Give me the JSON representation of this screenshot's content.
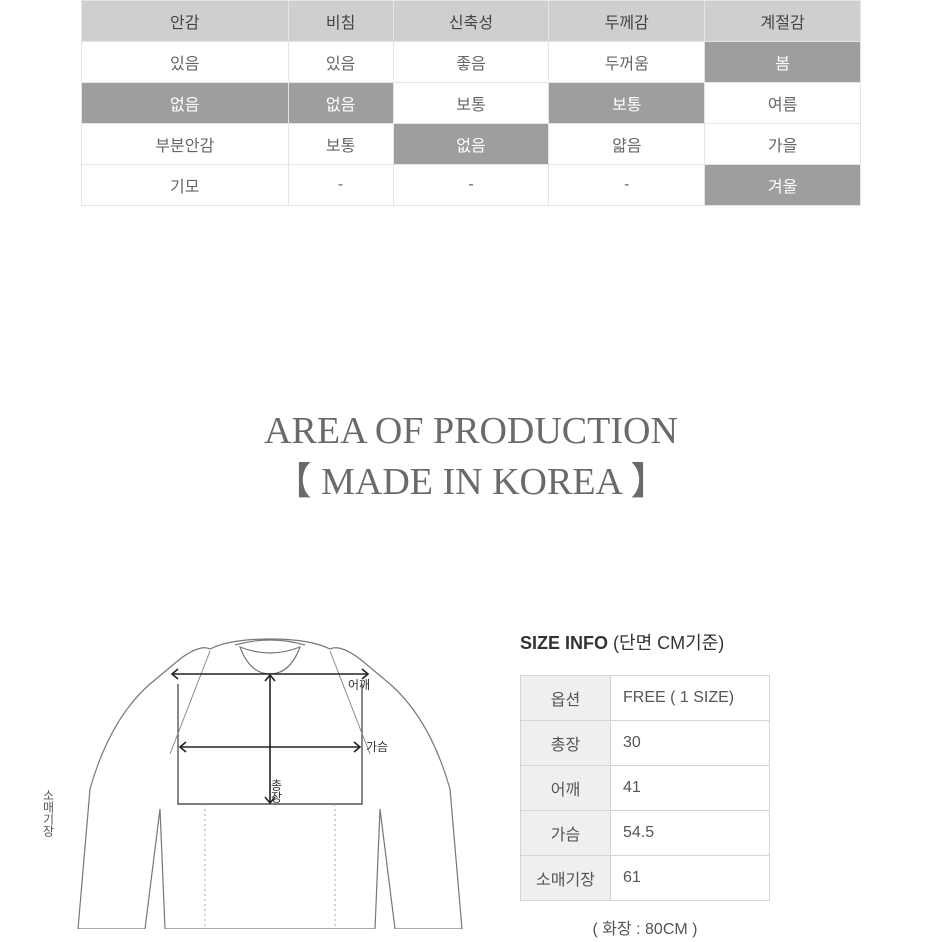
{
  "attr_table": {
    "headers": [
      "안감",
      "비침",
      "신축성",
      "두께감",
      "계절감"
    ],
    "rows": [
      [
        {
          "t": "있음",
          "hl": false
        },
        {
          "t": "있음",
          "hl": false
        },
        {
          "t": "좋음",
          "hl": false
        },
        {
          "t": "두꺼움",
          "hl": false
        },
        {
          "t": "봄",
          "hl": true
        }
      ],
      [
        {
          "t": "없음",
          "hl": true
        },
        {
          "t": "없음",
          "hl": true
        },
        {
          "t": "보통",
          "hl": false
        },
        {
          "t": "보통",
          "hl": true
        },
        {
          "t": "여름",
          "hl": false
        }
      ],
      [
        {
          "t": "부분안감",
          "hl": false
        },
        {
          "t": "보통",
          "hl": false
        },
        {
          "t": "없음",
          "hl": true
        },
        {
          "t": "얇음",
          "hl": false
        },
        {
          "t": "가을",
          "hl": false
        }
      ],
      [
        {
          "t": "기모",
          "hl": false
        },
        {
          "t": "-",
          "hl": false
        },
        {
          "t": "-",
          "hl": false
        },
        {
          "t": "-",
          "hl": false
        },
        {
          "t": "겨울",
          "hl": true
        }
      ]
    ]
  },
  "production": {
    "line1": "AREA OF PRODUCTION",
    "line2": "【 MADE IN KOREA 】"
  },
  "diagram": {
    "labels": {
      "shoulder": "어깨",
      "chest": "가슴",
      "length": "총장",
      "sleeve": "소매기장"
    },
    "stroke": "#5a5a5a",
    "fill": "#ffffff"
  },
  "size": {
    "title": "SIZE INFO",
    "title_sub": "(단면 CM기준)",
    "rows": [
      {
        "k": "옵션",
        "v": "FREE ( 1 SIZE)"
      },
      {
        "k": "총장",
        "v": "30"
      },
      {
        "k": "어깨",
        "v": "41"
      },
      {
        "k": "가슴",
        "v": "54.5"
      },
      {
        "k": "소매기장",
        "v": "61"
      }
    ],
    "note": "( 화장 : 80CM )"
  },
  "colors": {
    "header_bg": "#cfcfcf",
    "highlight_bg": "#9e9e9e",
    "border": "#e5e5e5",
    "text": "#666666"
  }
}
